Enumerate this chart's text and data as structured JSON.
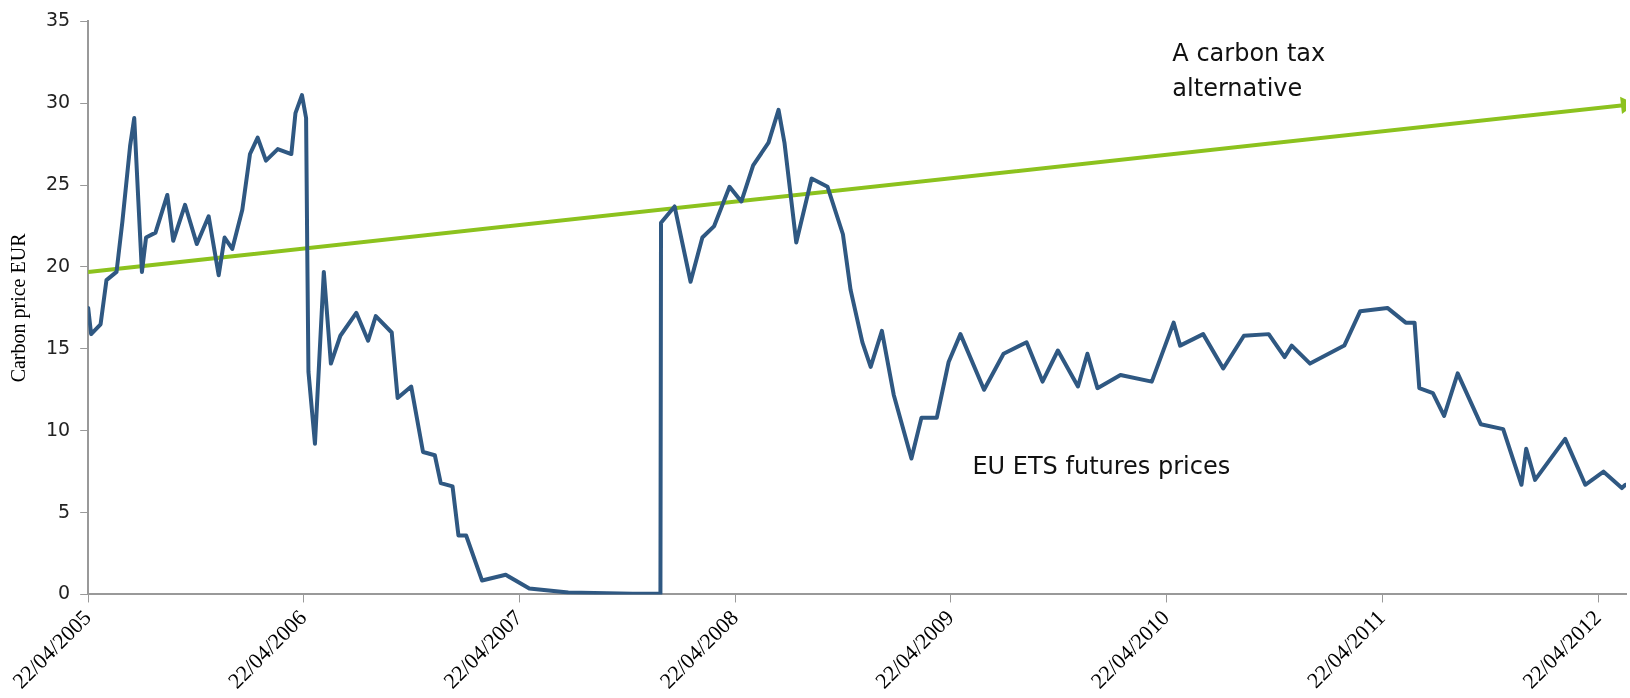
{
  "chart_data": {
    "type": "line",
    "ylabel": "Carbon price EUR",
    "xlim": [
      "2005-04-22",
      "2012-06-08"
    ],
    "ylim": [
      0,
      35
    ],
    "yticks": [
      0,
      5,
      10,
      15,
      20,
      25,
      30,
      35
    ],
    "xticks": [
      {
        "value": "2005-04-22",
        "label": "22/04/2005"
      },
      {
        "value": "2006-04-22",
        "label": "22/04/2006"
      },
      {
        "value": "2007-04-22",
        "label": "22/04/2007"
      },
      {
        "value": "2008-04-22",
        "label": "22/04/2008"
      },
      {
        "value": "2009-04-22",
        "label": "22/04/2009"
      },
      {
        "value": "2010-04-22",
        "label": "22/04/2010"
      },
      {
        "value": "2011-04-22",
        "label": "22/04/2011"
      },
      {
        "value": "2012-04-22",
        "label": "22/04/2012"
      }
    ],
    "grid": false,
    "legend": false,
    "marker": "none",
    "line_style": "solid",
    "series": [
      {
        "name": "EU ETS futures prices",
        "color": "#2f5882",
        "x": [
          "2005-04-22",
          "2005-04-27",
          "2005-05-13",
          "2005-05-23",
          "2005-06-09",
          "2005-06-19",
          "2005-07-02",
          "2005-07-09",
          "2005-07-16",
          "2005-07-22",
          "2005-07-29",
          "2005-08-14",
          "2005-09-03",
          "2005-09-13",
          "2005-10-03",
          "2005-10-23",
          "2005-11-12",
          "2005-11-29",
          "2005-12-09",
          "2005-12-22",
          "2006-01-08",
          "2006-01-21",
          "2006-02-03",
          "2006-02-17",
          "2006-03-09",
          "2006-04-01",
          "2006-04-08",
          "2006-04-19",
          "2006-04-26",
          "2006-04-28",
          "2006-04-30",
          "2006-05-11",
          "2006-05-18",
          "2006-05-26",
          "2006-06-07",
          "2006-06-23",
          "2006-07-20",
          "2006-08-09",
          "2006-08-22",
          "2006-09-18",
          "2006-09-28",
          "2006-10-21",
          "2006-11-10",
          "2006-11-30",
          "2006-12-10",
          "2006-12-30",
          "2007-01-09",
          "2007-01-22",
          "2007-02-18",
          "2007-03-30",
          "2007-05-09",
          "2007-07-14",
          "2007-10-31",
          "2007-12-17",
          "2007-12-18",
          "2008-01-10",
          "2008-02-06",
          "2008-02-26",
          "2008-03-17",
          "2008-04-12",
          "2008-05-02",
          "2008-05-22",
          "2008-06-17",
          "2008-07-04",
          "2008-07-14",
          "2008-08-03",
          "2008-08-29",
          "2008-09-25",
          "2008-10-21",
          "2008-11-03",
          "2008-11-23",
          "2008-12-07",
          "2008-12-26",
          "2009-01-15",
          "2009-02-14",
          "2009-03-03",
          "2009-03-29",
          "2009-04-18",
          "2009-05-08",
          "2009-06-17",
          "2009-07-20",
          "2009-08-28",
          "2009-09-24",
          "2009-10-20",
          "2009-11-23",
          "2009-12-09",
          "2009-12-26",
          "2010-02-03",
          "2010-03-28",
          "2010-05-04",
          "2010-05-15",
          "2010-06-23",
          "2010-07-27",
          "2010-08-31",
          "2010-10-12",
          "2010-11-08",
          "2010-11-20",
          "2010-12-21",
          "2011-02-17",
          "2011-03-16",
          "2011-05-01",
          "2011-06-01",
          "2011-06-16",
          "2011-06-24",
          "2011-07-17",
          "2011-08-05",
          "2011-08-28",
          "2011-10-06",
          "2011-11-13",
          "2011-12-14",
          "2011-12-22",
          "2012-01-06",
          "2012-02-26",
          "2012-03-31",
          "2012-05-01",
          "2012-06-01",
          "2012-06-07"
        ],
        "values": [
          17.5,
          15.9,
          16.5,
          19.2,
          19.7,
          22.8,
          27.4,
          29.1,
          24,
          19.7,
          21.8,
          22.1,
          24.4,
          21.6,
          23.8,
          21.4,
          23.1,
          19.5,
          21.8,
          21.1,
          23.5,
          26.9,
          27.9,
          26.5,
          27.2,
          26.9,
          29.4,
          30.5,
          29.1,
          20.9,
          13.6,
          9.2,
          14.1,
          19.7,
          14.1,
          15.8,
          17.2,
          15.5,
          17,
          16,
          12,
          12.7,
          8.7,
          8.5,
          6.8,
          6.6,
          3.6,
          3.6,
          0.85,
          1.2,
          0.36,
          0.12,
          0.05,
          0.05,
          22.7,
          23.7,
          19.1,
          21.8,
          22.5,
          24.9,
          24,
          26.2,
          27.6,
          29.6,
          27.6,
          21.5,
          25.4,
          24.9,
          22,
          18.6,
          15.4,
          13.9,
          16.1,
          12.2,
          8.3,
          10.8,
          10.8,
          14.2,
          15.9,
          12.5,
          14.7,
          15.4,
          13,
          14.9,
          12.7,
          14.7,
          12.6,
          13.4,
          13,
          16.6,
          15.2,
          15.9,
          13.8,
          15.8,
          15.9,
          14.5,
          15.2,
          14.1,
          15.2,
          17.3,
          17.5,
          16.6,
          16.6,
          12.6,
          12.3,
          10.9,
          13.5,
          10.4,
          10.1,
          6.7,
          8.9,
          7,
          9.5,
          6.7,
          7.5,
          6.5,
          6.7
        ]
      },
      {
        "name": "A carbon tax alternative",
        "color": "#8cc21e",
        "marker": "triangle",
        "x": [
          "2005-04-22",
          "2012-06-08"
        ],
        "values": [
          19.7,
          29.9
        ]
      }
    ]
  }
}
